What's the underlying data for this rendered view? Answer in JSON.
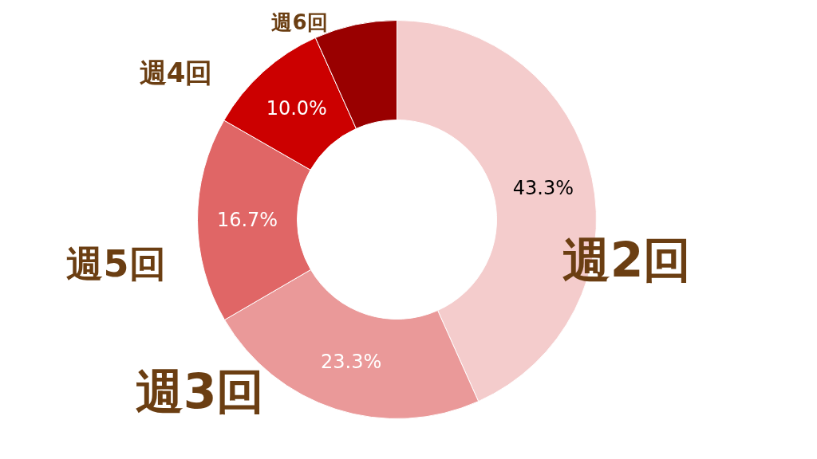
{
  "chart_data": {
    "type": "donut",
    "categories": [
      "週2回",
      "週3回",
      "週5回",
      "週4回",
      "週6回"
    ],
    "values": [
      43.3,
      23.3,
      16.7,
      10.0,
      6.7
    ],
    "value_labels": [
      "43.3%",
      "23.3%",
      "16.7%",
      "10.0%",
      null
    ],
    "colors": [
      "#f4cccc",
      "#ea9999",
      "#e06666",
      "#cc0000",
      "#990000"
    ],
    "legend": false
  }
}
